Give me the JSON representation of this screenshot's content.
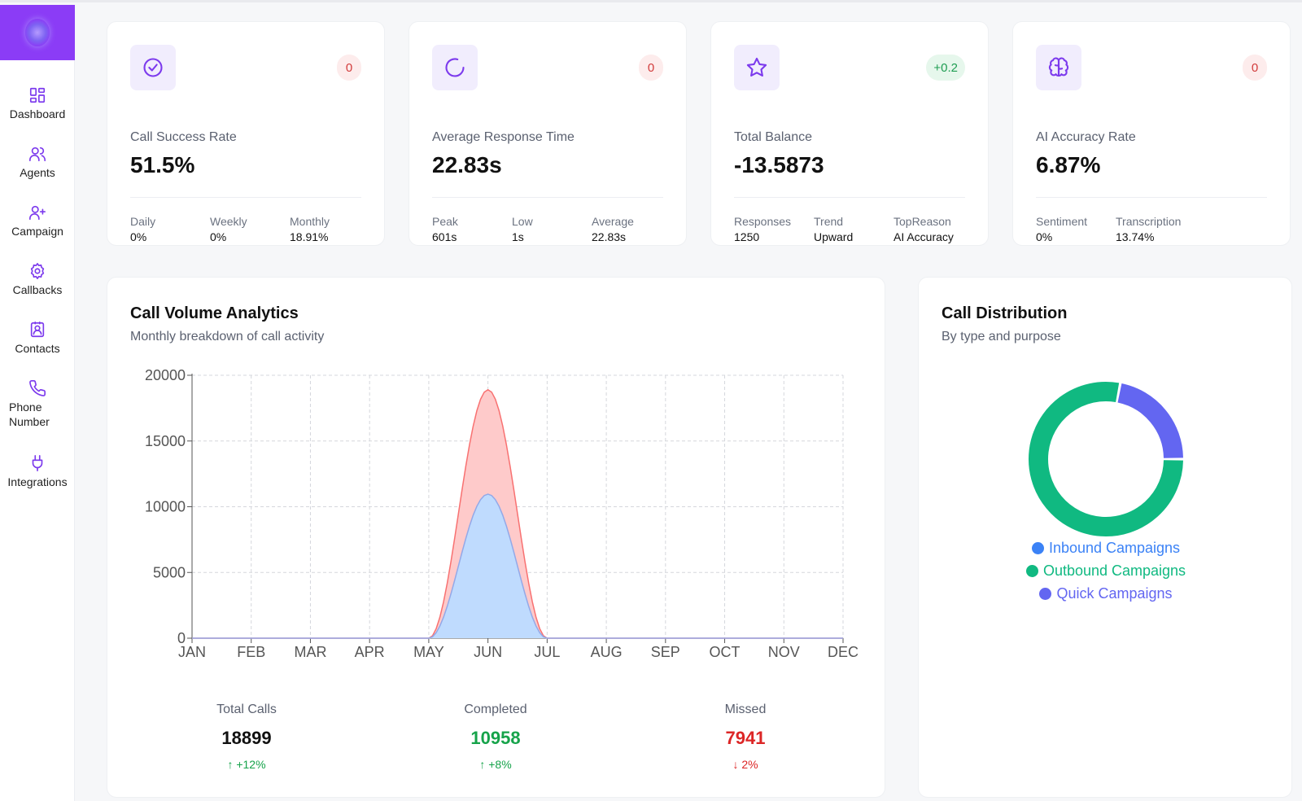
{
  "sidebar": {
    "items": [
      {
        "label": "Dashboard",
        "icon": "dashboard-grid-icon"
      },
      {
        "label": "Agents",
        "icon": "users-icon"
      },
      {
        "label": "Campaign",
        "icon": "user-plus-icon"
      },
      {
        "label": "Callbacks",
        "icon": "gear-icon"
      },
      {
        "label": "Contacts",
        "icon": "contact-card-icon"
      },
      {
        "label": "Phone Number",
        "icon": "phone-icon"
      },
      {
        "label": "Integrations",
        "icon": "plug-icon"
      }
    ]
  },
  "stats": [
    {
      "title": "Call Success Rate",
      "value": "51.5%",
      "badge": "0",
      "badge_type": "negative",
      "icon": "check-circle-icon",
      "subs": [
        {
          "k": "Daily",
          "v": "0%"
        },
        {
          "k": "Weekly",
          "v": "0%"
        },
        {
          "k": "Monthly",
          "v": "18.91%"
        }
      ]
    },
    {
      "title": "Average Response Time",
      "value": "22.83s",
      "badge": "0",
      "badge_type": "negative",
      "icon": "loader-icon",
      "subs": [
        {
          "k": "Peak",
          "v": "601s"
        },
        {
          "k": "Low",
          "v": "1s"
        },
        {
          "k": "Average",
          "v": "22.83s"
        }
      ]
    },
    {
      "title": "Total Balance",
      "value": "-13.5873",
      "badge": "+0.2",
      "badge_type": "positive",
      "icon": "star-icon",
      "subs": [
        {
          "k": "Responses",
          "v": "1250"
        },
        {
          "k": "Trend",
          "v": "Upward"
        },
        {
          "k": "TopReason",
          "v": "AI Accuracy"
        }
      ]
    },
    {
      "title": "AI Accuracy Rate",
      "value": "6.87%",
      "badge": "0",
      "badge_type": "negative",
      "icon": "brain-icon",
      "subs": [
        {
          "k": "Sentiment",
          "v": "0%"
        },
        {
          "k": "Transcription",
          "v": "13.74%"
        }
      ]
    }
  ],
  "volume": {
    "title": "Call Volume Analytics",
    "subtitle": "Monthly breakdown of call activity",
    "summary": [
      {
        "label": "Total Calls",
        "value": "18899",
        "change": "↑ +12%",
        "tone": "neutral",
        "change_tone": "green"
      },
      {
        "label": "Completed",
        "value": "10958",
        "change": "↑ +8%",
        "tone": "green",
        "change_tone": "green"
      },
      {
        "label": "Missed",
        "value": "7941",
        "change": "↓ 2%",
        "tone": "red",
        "change_tone": "red"
      }
    ]
  },
  "distribution": {
    "title": "Call Distribution",
    "subtitle": "By type and purpose",
    "legend": [
      {
        "label": "Inbound Campaigns",
        "color": "#3b82f6"
      },
      {
        "label": "Outbound Campaigns",
        "color": "#10b981"
      },
      {
        "label": "Quick Campaigns",
        "color": "#6366f1"
      }
    ]
  },
  "chart_data": [
    {
      "type": "area",
      "categories": [
        "JAN",
        "FEB",
        "MAR",
        "APR",
        "MAY",
        "JUN",
        "JUL",
        "AUG",
        "SEP",
        "OCT",
        "NOV",
        "DEC"
      ],
      "series": [
        {
          "values": [
            0,
            0,
            0,
            0,
            0,
            18899,
            0,
            0,
            0,
            0,
            0,
            0
          ],
          "color": "#f87171",
          "fill": "#fecaca"
        },
        {
          "values": [
            0,
            0,
            0,
            0,
            0,
            10958,
            0,
            0,
            0,
            0,
            0,
            0
          ],
          "color": "#93a9e8",
          "fill": "#bfdbfe"
        }
      ],
      "ylim": [
        0,
        20000
      ],
      "yticks": [
        0,
        5000,
        10000,
        15000,
        20000
      ],
      "grid": true
    },
    {
      "type": "pie",
      "variant": "donut",
      "slices": [
        {
          "label": "Inbound Campaigns",
          "value": 0,
          "color": "#3b82f6"
        },
        {
          "label": "Outbound Campaigns",
          "value": 78,
          "color": "#10b981"
        },
        {
          "label": "Quick Campaigns",
          "value": 22,
          "color": "#6366f1"
        }
      ]
    }
  ]
}
